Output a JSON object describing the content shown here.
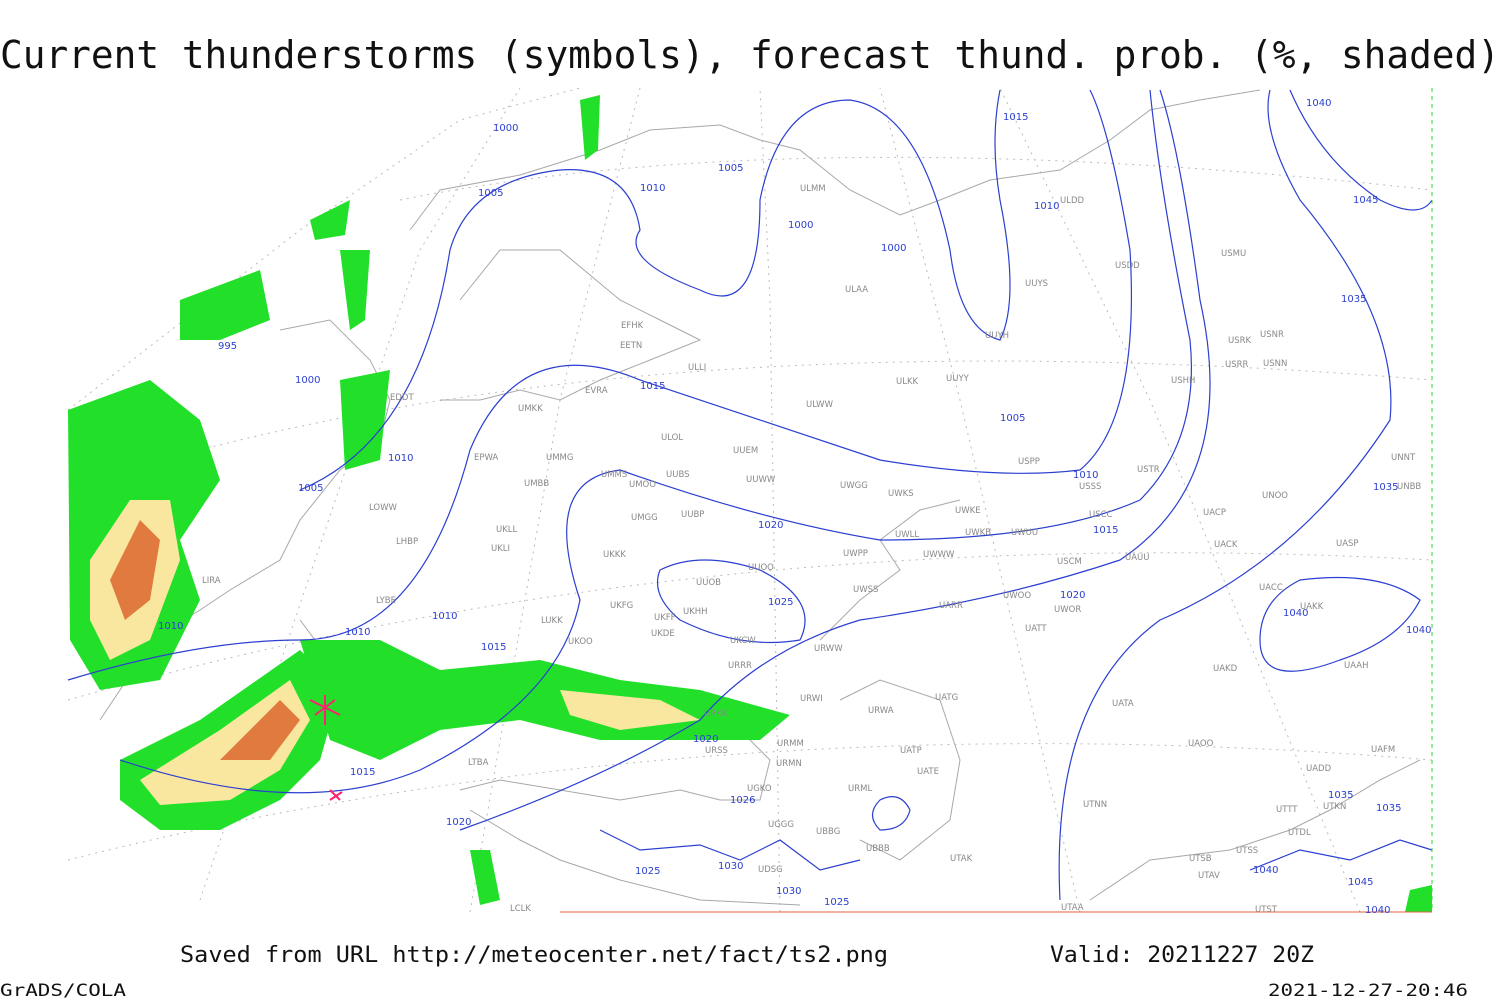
{
  "header": {
    "title": "Current thunderstorms (symbols), forecast thund. prob. (%, shaded)"
  },
  "isobar_labels": [
    1000,
    1005,
    1010,
    1005,
    1000,
    1000,
    1015,
    1010,
    1040,
    1045,
    1035,
    995,
    1000,
    1010,
    1005,
    1015,
    1005,
    1010,
    1015,
    1020,
    1025,
    1020,
    1035,
    1040,
    1040,
    1010,
    1010,
    1010,
    1015,
    1020,
    1015,
    1020,
    1026,
    1025,
    1030,
    1030,
    1025,
    1035,
    1035,
    1040,
    1045,
    1040
  ],
  "stations": [
    "ULMM",
    "ULDD",
    "USDD",
    "USMU",
    "UUYS",
    "ULAA",
    "UUYH",
    "USRK",
    "USNR",
    "USRR",
    "USNN",
    "ULKK",
    "UUYY",
    "USHH",
    "EFHK",
    "EETN",
    "ULLI",
    "EVRA",
    "ULOL",
    "UMKK",
    "UUEM",
    "USPP",
    "EPWA",
    "UMMG",
    "USTR",
    "UMMS",
    "UMOO",
    "UUBS",
    "UUWW",
    "ULWW",
    "USSS",
    "UWGG",
    "UWKS",
    "UMBB",
    "UNOO",
    "UNNT",
    "UNBB",
    "EDDT",
    "LOWW",
    "UWKE",
    "USCC",
    "UACP",
    "UMGG",
    "UUBP",
    "UKLL",
    "UWKB",
    "UWUU",
    "UWLL",
    "UACK",
    "UASP",
    "LHBP",
    "UKLI",
    "UWPP",
    "UWWW",
    "USCM",
    "UAUU",
    "UKKK",
    "UUOO",
    "LIRA",
    "UUOB",
    "UACC",
    "LYBE",
    "UARR",
    "UWOO",
    "UWOR",
    "UAKK",
    "UKFG",
    "UKFF",
    "UKHH",
    "UKDE",
    "UKOO",
    "LUKK",
    "UATT",
    "URWW",
    "UWSS",
    "UKCW",
    "URRR",
    "URWI",
    "UATG",
    "UAKD",
    "UAAH",
    "URKK",
    "URWA",
    "UATA",
    "UAOO",
    "URSS",
    "URMM",
    "UATP",
    "URMN",
    "UATE",
    "UADD",
    "UAFM",
    "LTBA",
    "UGKO",
    "URML",
    "UTNN",
    "UTKN",
    "UTTT",
    "UGGG",
    "UBBG",
    "UTDL",
    "UBBB",
    "UTAK",
    "UTSB",
    "UTSS",
    "UDSG",
    "UTAV",
    "UTAA",
    "UTST",
    "LCLK"
  ],
  "footer": {
    "source": "Saved from URL http://meteocenter.net/fact/ts2.png",
    "valid": "Valid: 20211227 20Z",
    "software": "GrADS/COLA",
    "timestamp": "2021-12-27-20:46"
  }
}
